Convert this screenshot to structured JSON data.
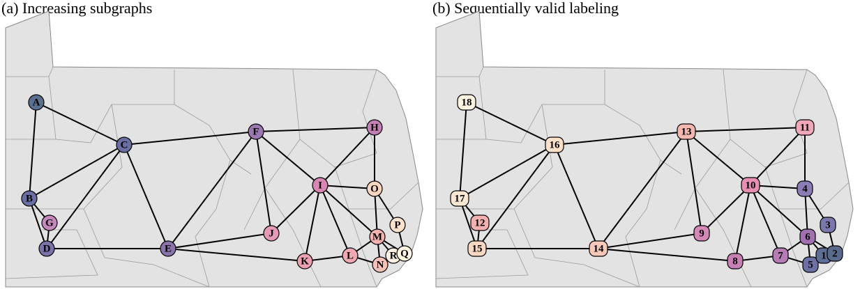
{
  "panels": [
    {
      "title": "(a) Increasing subgraphs",
      "nodes": [
        {
          "label": "A",
          "color": "#5b6f8e"
        },
        {
          "label": "C",
          "color": "#6a6ea2"
        },
        {
          "label": "F",
          "color": "#9c78b2"
        },
        {
          "label": "H",
          "color": "#c27fb4"
        },
        {
          "label": "B",
          "color": "#6a6ea2"
        },
        {
          "label": "G",
          "color": "#c488bc"
        },
        {
          "label": "D",
          "color": "#7c72aa"
        },
        {
          "label": "E",
          "color": "#8a74ac"
        },
        {
          "label": "I",
          "color": "#d886b2"
        },
        {
          "label": "O",
          "color": "#fad6c0"
        },
        {
          "label": "J",
          "color": "#e699b6"
        },
        {
          "label": "K",
          "color": "#eca0b2"
        },
        {
          "label": "L",
          "color": "#f0a8b2"
        },
        {
          "label": "M",
          "color": "#f4b2b0"
        },
        {
          "label": "P",
          "color": "#fce2cc"
        },
        {
          "label": "N",
          "color": "#f8c0b8"
        },
        {
          "label": "R",
          "color": "#fff0e2"
        },
        {
          "label": "Q",
          "color": "#fff4e2"
        }
      ]
    },
    {
      "title": "(b) Sequentially valid labeling",
      "nodes": [
        {
          "label": "18",
          "color": "#fff4e2"
        },
        {
          "label": "16",
          "color": "#fde0c8"
        },
        {
          "label": "13",
          "color": "#f4b8b0"
        },
        {
          "label": "11",
          "color": "#f0a8b8"
        },
        {
          "label": "17",
          "color": "#fce8d2"
        },
        {
          "label": "12",
          "color": "#f4b0b0"
        },
        {
          "label": "15",
          "color": "#fad8c2"
        },
        {
          "label": "14",
          "color": "#f8c8b8"
        },
        {
          "label": "10",
          "color": "#e890b4"
        },
        {
          "label": "4",
          "color": "#8a7cb4"
        },
        {
          "label": "9",
          "color": "#d488b8"
        },
        {
          "label": "8",
          "color": "#c880b4"
        },
        {
          "label": "7",
          "color": "#b67cb4"
        },
        {
          "label": "6",
          "color": "#a070b0"
        },
        {
          "label": "3",
          "color": "#7a78ac"
        },
        {
          "label": "5",
          "color": "#6c70a4"
        },
        {
          "label": "1",
          "color": "#5c6e96"
        },
        {
          "label": "2",
          "color": "#5a6a8c"
        }
      ]
    }
  ]
}
